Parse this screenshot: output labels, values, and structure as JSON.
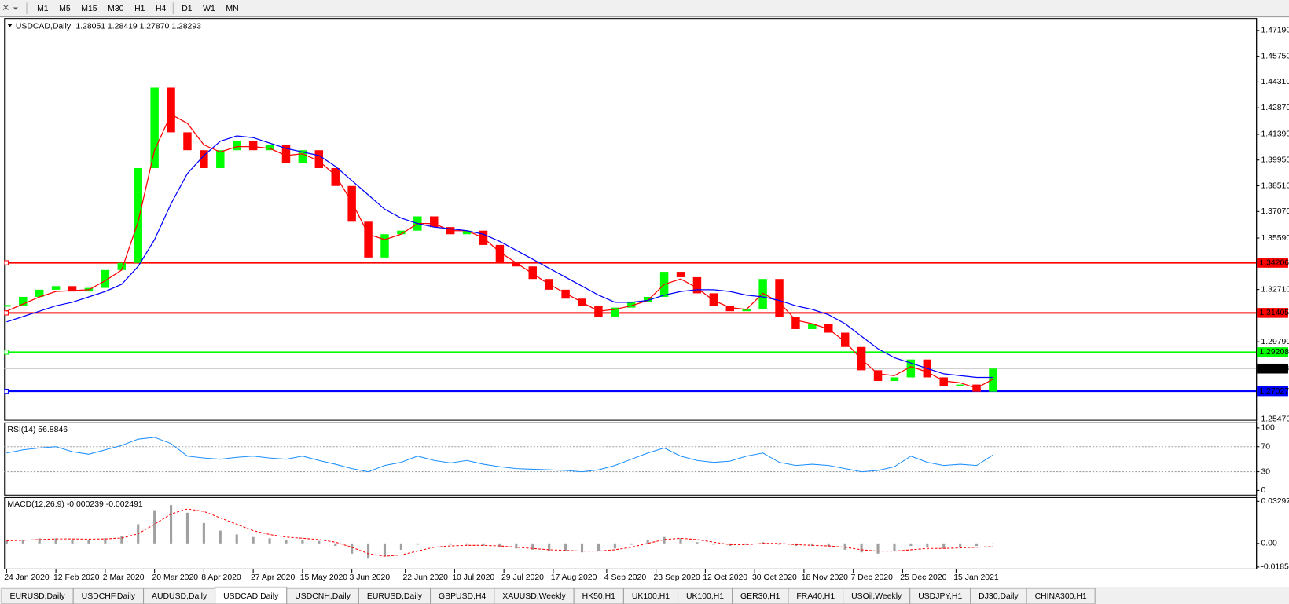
{
  "toolbar": {
    "timeframes": [
      "M1",
      "M5",
      "M15",
      "M30",
      "H1",
      "H4",
      "D1",
      "W1",
      "MN"
    ]
  },
  "chart_data": [
    {
      "type": "candlestick",
      "title": "USDCAD,Daily",
      "subtitle": "1.28051 1.28419 1.27870 1.28293",
      "values": [
        1.318,
        1.323,
        1.327,
        1.329,
        1.326,
        1.328,
        1.338,
        1.342,
        1.395,
        1.44,
        1.415,
        1.405,
        1.395,
        1.405,
        1.41,
        1.405,
        1.408,
        1.398,
        1.405,
        1.395,
        1.385,
        1.365,
        1.345,
        1.358,
        1.36,
        1.368,
        1.362,
        1.358,
        1.36,
        1.352,
        1.342,
        1.34,
        1.333,
        1.327,
        1.322,
        1.318,
        1.312,
        1.317,
        1.32,
        1.323,
        1.337,
        1.334,
        1.325,
        1.318,
        1.315,
        1.316,
        1.333,
        1.312,
        1.305,
        1.308,
        1.303,
        1.295,
        1.282,
        1.276,
        1.278,
        1.288,
        1.278,
        1.273,
        1.274,
        1.27,
        1.2829
      ],
      "up_color": "#00ff00",
      "down_color": "#ff0000",
      "moving_averages": [
        {
          "color": "#ff0000",
          "values": [
            1.315,
            1.319,
            1.323,
            1.326,
            1.3265,
            1.327,
            1.332,
            1.338,
            1.365,
            1.405,
            1.425,
            1.42,
            1.408,
            1.404,
            1.407,
            1.407,
            1.406,
            1.402,
            1.403,
            1.399,
            1.391,
            1.376,
            1.358,
            1.355,
            1.358,
            1.364,
            1.364,
            1.36,
            1.36,
            1.356,
            1.348,
            1.342,
            1.336,
            1.33,
            1.325,
            1.32,
            1.315,
            1.316,
            1.318,
            1.321,
            1.33,
            1.333,
            1.328,
            1.321,
            1.317,
            1.316,
            1.325,
            1.32,
            1.31,
            1.308,
            1.305,
            1.298,
            1.288,
            1.28,
            1.279,
            1.284,
            1.281,
            1.276,
            1.275,
            1.272,
            1.277
          ]
        },
        {
          "color": "#0000ff",
          "values": [
            1.309,
            1.312,
            1.315,
            1.318,
            1.32,
            1.323,
            1.326,
            1.33,
            1.34,
            1.355,
            1.375,
            1.392,
            1.402,
            1.41,
            1.413,
            1.412,
            1.409,
            1.406,
            1.404,
            1.402,
            1.396,
            1.388,
            1.38,
            1.372,
            1.367,
            1.364,
            1.362,
            1.361,
            1.36,
            1.358,
            1.354,
            1.349,
            1.344,
            1.339,
            1.334,
            1.329,
            1.324,
            1.32,
            1.32,
            1.321,
            1.324,
            1.326,
            1.327,
            1.327,
            1.326,
            1.324,
            1.323,
            1.321,
            1.318,
            1.316,
            1.313,
            1.308,
            1.301,
            1.294,
            1.289,
            1.286,
            1.283,
            1.28,
            1.279,
            1.278,
            1.278
          ]
        }
      ],
      "levels": [
        {
          "value": 1.34206,
          "color": "#ff0000",
          "box": "#ff0000"
        },
        {
          "value": 1.31405,
          "color": "#ff0000",
          "box": "#ff0000"
        },
        {
          "value": 1.29208,
          "color": "#00ff00",
          "box": "#00ff00"
        },
        {
          "value": 1.28293,
          "color": "#c0c0c0",
          "box": "#000000"
        },
        {
          "value": 1.27027,
          "color": "#0000ff",
          "box": "#0000ff"
        }
      ],
      "ylim": [
        1.25378,
        1.47879
      ],
      "yticks": [
        {
          "value": 1.4719,
          "label": "1.47190"
        },
        {
          "value": 1.4575,
          "label": "1.45750"
        },
        {
          "value": 1.4431,
          "label": "1.44310"
        },
        {
          "value": 1.4287,
          "label": "1.42870"
        },
        {
          "value": 1.4139,
          "label": "1.41390"
        },
        {
          "value": 1.3995,
          "label": "1.39950"
        },
        {
          "value": 1.3851,
          "label": "1.38510"
        },
        {
          "value": 1.3707,
          "label": "1.37070"
        },
        {
          "value": 1.3559,
          "label": "1.35590"
        },
        {
          "value": 1.3271,
          "label": "1.32710"
        },
        {
          "value": 1.2979,
          "label": "1.29790"
        },
        {
          "value": 1.2547,
          "label": "1.25470"
        }
      ],
      "xticks": [
        {
          "value": 0,
          "label": "24 Jan 2020"
        },
        {
          "value": 3,
          "label": "12 Feb 2020"
        },
        {
          "value": 6,
          "label": "2 Mar 2020"
        },
        {
          "value": 9,
          "label": "20 Mar 2020"
        },
        {
          "value": 12,
          "label": "8 Apr 2020"
        },
        {
          "value": 15,
          "label": "27 Apr 2020"
        },
        {
          "value": 18,
          "label": "15 May 2020"
        },
        {
          "value": 21,
          "label": "3 Jun 2020"
        },
        {
          "value": 24.25,
          "label": "22 Jun 2020"
        },
        {
          "value": 27.25,
          "label": "10 Jul 2020"
        },
        {
          "value": 30.25,
          "label": "29 Jul 2020"
        },
        {
          "value": 33.25,
          "label": "17 Aug 2020"
        },
        {
          "value": 36.5,
          "label": "4 Sep 2020"
        },
        {
          "value": 39.5,
          "label": "23 Sep 2020"
        },
        {
          "value": 42.5,
          "label": "12 Oct 2020"
        },
        {
          "value": 45.5,
          "label": "30 Oct 2020"
        },
        {
          "value": 48.5,
          "label": "18 Nov 2020"
        },
        {
          "value": 51.5,
          "label": "7 Dec 2020"
        },
        {
          "value": 54.5,
          "label": "25 Dec 2020"
        },
        {
          "value": 57.75,
          "label": "15 Jan 2021"
        }
      ]
    },
    {
      "type": "line",
      "title": "RSI(14) 56.8846",
      "color": "#1e90ff",
      "values": [
        60,
        65,
        68,
        70,
        62,
        58,
        65,
        72,
        82,
        85,
        75,
        55,
        52,
        50,
        53,
        55,
        52,
        50,
        55,
        48,
        42,
        35,
        30,
        40,
        45,
        55,
        48,
        44,
        48,
        42,
        38,
        35,
        34,
        33,
        32,
        30,
        33,
        40,
        50,
        60,
        68,
        55,
        48,
        45,
        47,
        55,
        60,
        45,
        40,
        42,
        40,
        35,
        30,
        32,
        38,
        55,
        45,
        40,
        42,
        40,
        56.8846
      ],
      "ylim": [
        -8,
        109
      ],
      "yticks": [
        100,
        70,
        30,
        0
      ],
      "levels": [
        70,
        30
      ]
    },
    {
      "type": "macd",
      "title": "MACD(12,26,9) -0.000239 -0.002491",
      "hist_color": "#a0a0a0",
      "signal_color": "#ff0000",
      "values": [
        0.002,
        0.003,
        0.004,
        0.004,
        0.003,
        0.003,
        0.004,
        0.006,
        0.015,
        0.026,
        0.03,
        0.024,
        0.016,
        0.01,
        0.007,
        0.005,
        0.004,
        0.003,
        0.003,
        0.002,
        -0.002,
        -0.008,
        -0.012,
        -0.01,
        -0.005,
        -0.001,
        0.0,
        -0.001,
        -0.001,
        -0.002,
        -0.003,
        -0.004,
        -0.005,
        -0.006,
        -0.006,
        -0.007,
        -0.006,
        -0.004,
        -0.001,
        0.003,
        0.005,
        0.004,
        0.001,
        -0.001,
        -0.002,
        -0.001,
        0.001,
        -0.001,
        -0.002,
        -0.002,
        -0.003,
        -0.005,
        -0.007,
        -0.008,
        -0.006,
        -0.002,
        -0.003,
        -0.004,
        -0.003,
        -0.002,
        -0.000239
      ],
      "signal": [
        0.002,
        0.0025,
        0.003,
        0.0035,
        0.0035,
        0.0033,
        0.0035,
        0.0042,
        0.0075,
        0.015,
        0.023,
        0.027,
        0.025,
        0.02,
        0.015,
        0.01,
        0.007,
        0.005,
        0.004,
        0.003,
        0.001,
        -0.003,
        -0.008,
        -0.01,
        -0.009,
        -0.006,
        -0.003,
        -0.002,
        -0.0015,
        -0.0015,
        -0.002,
        -0.003,
        -0.004,
        -0.005,
        -0.0055,
        -0.006,
        -0.006,
        -0.005,
        -0.003,
        0.0,
        0.003,
        0.004,
        0.003,
        0.001,
        -0.001,
        -0.001,
        0.0,
        0.0,
        -0.001,
        -0.0015,
        -0.002,
        -0.003,
        -0.005,
        -0.006,
        -0.006,
        -0.005,
        -0.004,
        -0.004,
        -0.0035,
        -0.003,
        -0.002491
      ],
      "ylim": [
        -0.0204,
        0.0363
      ],
      "yticks": [
        0.032972,
        {
          "value": 0,
          "label": "0.00"
        },
        -0.01851
      ]
    }
  ],
  "tabs": [
    {
      "label": "EURUSD,Daily"
    },
    {
      "label": "USDCHF,Daily"
    },
    {
      "label": "AUDUSD,Daily"
    },
    {
      "label": "USDCAD,Daily",
      "active": true
    },
    {
      "label": "USDCNH,Daily"
    },
    {
      "label": "EURUSD,Daily"
    },
    {
      "label": "GBPUSD,H4"
    },
    {
      "label": "XAUUSD,Weekly"
    },
    {
      "label": "HK50,H1"
    },
    {
      "label": "UK100,H1"
    },
    {
      "label": "UK100,H1"
    },
    {
      "label": "GER30,H1"
    },
    {
      "label": "FRA40,H1"
    },
    {
      "label": "USOil,Weekly"
    },
    {
      "label": "USDJPY,H1"
    },
    {
      "label": "DJ30,Daily"
    },
    {
      "label": "CHINA300,H1"
    }
  ]
}
